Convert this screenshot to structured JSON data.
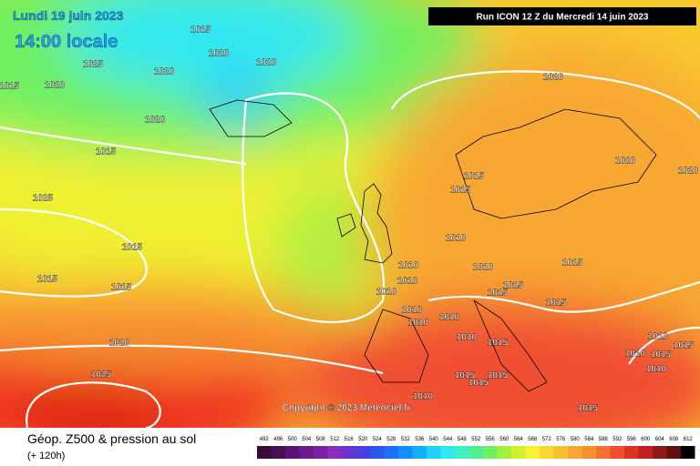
{
  "header": {
    "date": "Lundi 19 juin 2023",
    "time": "14:00 locale",
    "run": "Run ICON 12 Z du Mercredi 14 juin 2023",
    "copyright": "Copyright © 2023 Meteociel.fr"
  },
  "footer": {
    "title": "Géop. Z500 & pression au sol",
    "lead": "(+ 120h)"
  },
  "legend": {
    "values": [
      492,
      496,
      500,
      504,
      508,
      512,
      516,
      520,
      524,
      528,
      532,
      536,
      540,
      544,
      548,
      552,
      556,
      560,
      564,
      568,
      572,
      576,
      580,
      584,
      588,
      592,
      596,
      600,
      604,
      608,
      612
    ],
    "colors": [
      "#3a0a3a",
      "#4b0f55",
      "#5a1470",
      "#6a1a8a",
      "#7a20a5",
      "#8a2cbf",
      "#6a34d0",
      "#4a40e0",
      "#2c55f0",
      "#1a70f8",
      "#1090ff",
      "#10b0ff",
      "#20d0ff",
      "#30e8f0",
      "#40f0c0",
      "#50f090",
      "#70f060",
      "#a0f040",
      "#d0f030",
      "#f8f030",
      "#f8d830",
      "#f8c030",
      "#f8a830",
      "#f89030",
      "#f87030",
      "#f05030",
      "#e03020",
      "#c02020",
      "#901818",
      "#601010",
      "#000000"
    ]
  },
  "isobar_labels": [
    1015,
    1020,
    1020,
    1025,
    1020,
    1015,
    1020,
    1020,
    1015,
    1025,
    1015,
    1015,
    1015,
    1020,
    1025,
    1020,
    1015,
    1015,
    1020,
    1020,
    1010,
    1015,
    1010,
    1010,
    1015,
    1015,
    1010,
    1010,
    1015,
    1010,
    1010,
    1010,
    1010,
    1015,
    1010,
    1015,
    1010,
    1015,
    1010,
    1015,
    1015,
    1015,
    1010,
    1015
  ]
}
